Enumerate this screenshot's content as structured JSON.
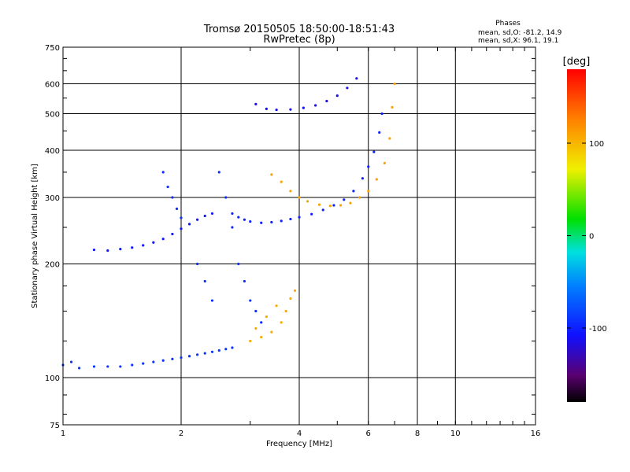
{
  "chart_data": {
    "type": "scatter",
    "title": "Tromsø 20150505 18:50:00-18:51:43",
    "subtitle": "RwPretec (8p)",
    "xlabel": "Frequency [MHz]",
    "ylabel": "Stationary phase Virtual Height [km]",
    "x_scale": "log",
    "y_scale": "log",
    "xlim": [
      1,
      16
    ],
    "ylim": [
      75,
      750
    ],
    "x_ticks": [
      1,
      2,
      4,
      6,
      8,
      10,
      16
    ],
    "y_ticks": [
      75,
      100,
      200,
      300,
      400,
      500,
      600,
      750
    ],
    "grid": true,
    "phase_info": {
      "title": "Phases",
      "line_o": "mean, sd,O: -81.2, 14.9",
      "line_x": "mean, sd,X:  96.1, 19.1"
    },
    "colorbar": {
      "label": "[deg]",
      "range": [
        -180,
        180
      ],
      "ticks": [
        100,
        0,
        -100
      ],
      "colormap": "rainbow (black-purple-blue-cyan-green-yellow-orange-red)"
    },
    "series": [
      {
        "points": [
          [
            1.0,
            108
          ],
          [
            1.05,
            110
          ],
          [
            1.1,
            106
          ],
          [
            1.2,
            107
          ],
          [
            1.3,
            107
          ],
          [
            1.4,
            107
          ],
          [
            1.5,
            108
          ],
          [
            1.6,
            109
          ],
          [
            1.7,
            110
          ],
          [
            1.8,
            111
          ],
          [
            1.9,
            112
          ],
          [
            2.0,
            113
          ],
          [
            2.1,
            114
          ],
          [
            2.2,
            115
          ],
          [
            2.3,
            116
          ],
          [
            2.4,
            117
          ],
          [
            2.5,
            118
          ],
          [
            2.6,
            119
          ],
          [
            2.7,
            120
          ]
        ],
        "phase": -90
      },
      {
        "points": [
          [
            1.2,
            218
          ],
          [
            1.3,
            217
          ],
          [
            1.4,
            219
          ],
          [
            1.5,
            221
          ],
          [
            1.6,
            224
          ],
          [
            1.7,
            228
          ],
          [
            1.8,
            233
          ],
          [
            1.9,
            240
          ],
          [
            2.0,
            248
          ],
          [
            2.1,
            255
          ],
          [
            2.2,
            262
          ],
          [
            2.3,
            268
          ],
          [
            2.4,
            272
          ]
        ],
        "phase": -105
      },
      {
        "points": [
          [
            2.7,
            272
          ],
          [
            2.8,
            266
          ],
          [
            2.9,
            262
          ],
          [
            3.0,
            259
          ],
          [
            3.2,
            257
          ],
          [
            3.4,
            258
          ],
          [
            3.6,
            260
          ],
          [
            3.8,
            263
          ],
          [
            4.0,
            266
          ],
          [
            4.3,
            271
          ],
          [
            4.6,
            278
          ],
          [
            4.9,
            286
          ],
          [
            5.2,
            296
          ],
          [
            5.5,
            312
          ],
          [
            5.8,
            337
          ],
          [
            6.0,
            362
          ],
          [
            6.2,
            396
          ],
          [
            6.4,
            446
          ],
          [
            6.5,
            500
          ]
        ],
        "phase": -100
      },
      {
        "points": [
          [
            3.1,
            530
          ],
          [
            3.3,
            515
          ],
          [
            3.5,
            512
          ],
          [
            3.8,
            513
          ],
          [
            4.1,
            518
          ],
          [
            4.4,
            526
          ],
          [
            4.7,
            540
          ],
          [
            5.0,
            558
          ],
          [
            5.3,
            585
          ],
          [
            5.6,
            620
          ]
        ],
        "phase": -112
      },
      {
        "points": [
          [
            3.4,
            345
          ],
          [
            3.6,
            330
          ],
          [
            3.8,
            312
          ],
          [
            4.0,
            300
          ],
          [
            4.2,
            293
          ],
          [
            4.5,
            287
          ],
          [
            4.8,
            285
          ],
          [
            5.1,
            286
          ],
          [
            5.4,
            290
          ],
          [
            5.7,
            300
          ],
          [
            6.0,
            312
          ],
          [
            6.3,
            335
          ],
          [
            6.6,
            370
          ],
          [
            6.8,
            430
          ],
          [
            6.9,
            520
          ],
          [
            7.0,
            600
          ]
        ],
        "phase": 110
      },
      {
        "points": [
          [
            3.0,
            125
          ],
          [
            3.2,
            128
          ],
          [
            3.4,
            132
          ],
          [
            3.6,
            140
          ],
          [
            3.7,
            150
          ],
          [
            3.8,
            162
          ],
          [
            3.9,
            170
          ],
          [
            3.5,
            155
          ],
          [
            3.3,
            145
          ],
          [
            3.1,
            135
          ]
        ],
        "phase": 105
      },
      {
        "points": [
          [
            1.8,
            350
          ],
          [
            1.85,
            320
          ],
          [
            1.9,
            300
          ],
          [
            1.95,
            280
          ],
          [
            2.0,
            265
          ],
          [
            2.5,
            350
          ],
          [
            2.6,
            300
          ],
          [
            2.7,
            250
          ],
          [
            2.8,
            200
          ],
          [
            2.9,
            180
          ],
          [
            3.0,
            160
          ],
          [
            3.1,
            150
          ],
          [
            3.2,
            140
          ],
          [
            2.2,
            200
          ],
          [
            2.3,
            180
          ],
          [
            2.4,
            160
          ]
        ],
        "phase": -95
      }
    ]
  }
}
